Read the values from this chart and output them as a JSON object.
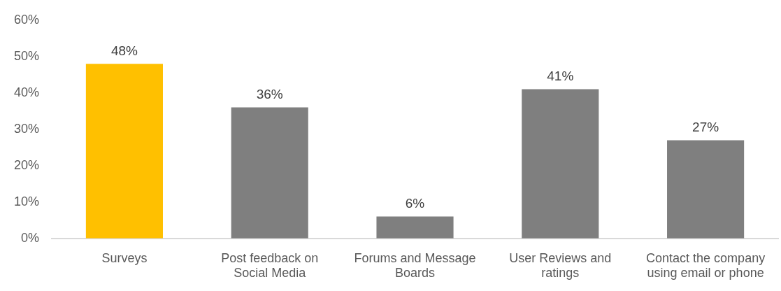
{
  "chart_data": {
    "type": "bar",
    "categories": [
      "Surveys",
      "Post feedback on Social Media",
      "Forums and Message Boards",
      "User Reviews and ratings",
      "Contact the company using email or phone"
    ],
    "values": [
      48,
      36,
      6,
      41,
      27
    ],
    "colors": [
      "#ffc000",
      "#7f7f7f",
      "#7f7f7f",
      "#7f7f7f",
      "#7f7f7f"
    ],
    "value_labels": [
      "48%",
      "36%",
      "6%",
      "41%",
      "27%"
    ],
    "ylim": [
      0,
      60
    ],
    "yticks": [
      {
        "value": 0,
        "label": "0%"
      },
      {
        "value": 10,
        "label": "10%"
      },
      {
        "value": 20,
        "label": "20%"
      },
      {
        "value": 30,
        "label": "30%"
      },
      {
        "value": 40,
        "label": "40%"
      },
      {
        "value": 50,
        "label": "50%"
      },
      {
        "value": 60,
        "label": "60%"
      }
    ]
  }
}
